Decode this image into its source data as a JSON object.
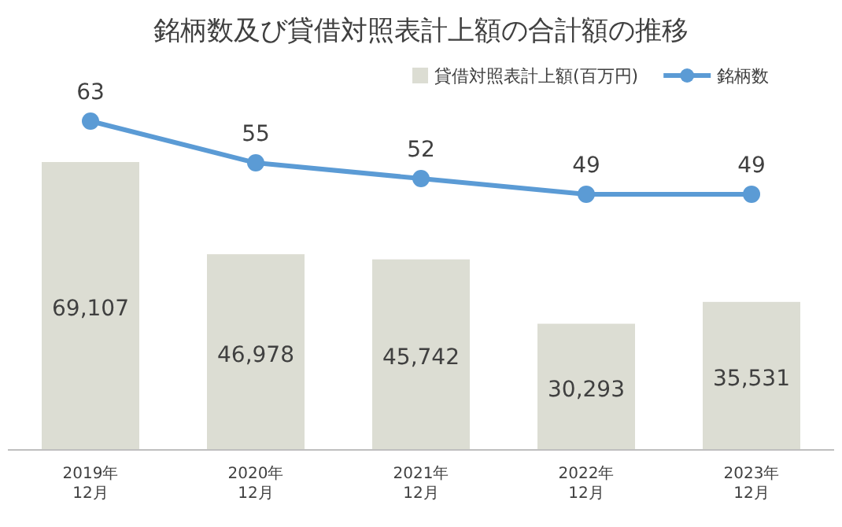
{
  "chart_data": {
    "type": "bar",
    "title": "銘柄数及び貸借対照表計上額の合計額の推移",
    "categories": [
      "2019年\n12月",
      "2020年\n12月",
      "2021年\n12月",
      "2022年\n12月",
      "2023年\n12月"
    ],
    "series": [
      {
        "name": "貸借対照表計上額(百万円)",
        "color": "#dcddd3",
        "values": [
          69107,
          46978,
          45742,
          30293,
          35531
        ],
        "value_labels": [
          "69,107",
          "46,978",
          "45,742",
          "30,293",
          "35,531"
        ]
      },
      {
        "name": "銘柄数",
        "type": "line",
        "axis": "y2",
        "color": "#5b9bd5",
        "values": [
          63,
          55,
          52,
          49,
          49
        ],
        "value_labels": [
          "63",
          "55",
          "52",
          "49",
          "49"
        ]
      }
    ],
    "legend": "top right",
    "marker": "circle"
  }
}
